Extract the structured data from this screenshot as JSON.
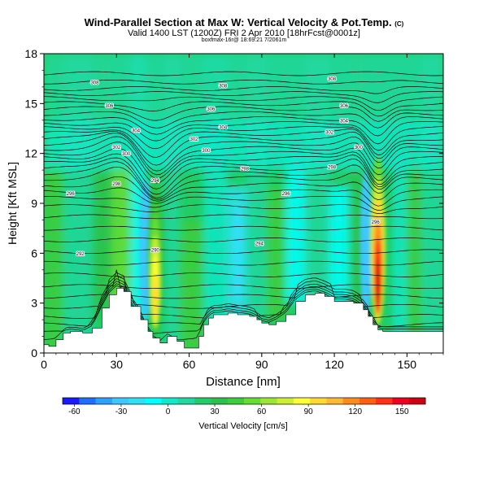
{
  "header": {
    "title": "Wind-Parallel Section at Max W: Vertical Velocity & Pot.Temp.",
    "title_mark": "(C)",
    "subtitle": "Valid 1400 LST (1200Z) FRI 2 Apr 2010 [18hrFcst@0001z]",
    "source_line": "boxfmax-16r@ 18:69:21 7/2061m"
  },
  "chart_data": {
    "type": "heatmap",
    "title": "Wind-Parallel Section at Max W: Vertical Velocity & Pot.Temp.",
    "xlabel": "Distance [nm]",
    "ylabel": "Height [Kft MSL]",
    "xlim": [
      0,
      165
    ],
    "ylim": [
      0,
      18
    ],
    "x_ticks": [
      0,
      30,
      60,
      90,
      120,
      150
    ],
    "y_ticks": [
      0,
      3,
      6,
      9,
      12,
      15,
      18
    ],
    "colorbar": {
      "label": "Vertical Velocity [cm/s]",
      "tick_values": [
        -60,
        -30,
        0,
        30,
        60,
        90,
        120,
        150
      ],
      "tick_labels": [
        "-60",
        "-30",
        "0",
        "30",
        "60",
        "90",
        "120",
        "150"
      ],
      "range": [
        -67.5,
        165
      ],
      "colors": [
        "#1a1aff",
        "#1e6fff",
        "#2ba0ff",
        "#3cc8ff",
        "#2ee0f0",
        "#00ffff",
        "#10e8c8",
        "#20d8a0",
        "#22cc66",
        "#2ac24a",
        "#3ccc3c",
        "#66dd33",
        "#99e633",
        "#ccee33",
        "#ffff33",
        "#ffd833",
        "#ffb833",
        "#ff8c1a",
        "#ff6010",
        "#ff3018",
        "#ee0020",
        "#cc0010"
      ]
    },
    "terrain": {
      "x": [
        0,
        2,
        5,
        8,
        11,
        16,
        20,
        24,
        27,
        30,
        33,
        36,
        40,
        43,
        45,
        48,
        51,
        55,
        58,
        61,
        64,
        66,
        68,
        70,
        73,
        76,
        80,
        85,
        88,
        90,
        93,
        96,
        100,
        104,
        108,
        112,
        116,
        120,
        124,
        128,
        132,
        134,
        136,
        138,
        140,
        145,
        150,
        155,
        160,
        165
      ],
      "y": [
        0.5,
        0.4,
        0.8,
        1.2,
        1.3,
        1.2,
        1.5,
        2.7,
        3.5,
        3.9,
        3.7,
        2.8,
        2.0,
        1.3,
        0.9,
        0.6,
        1.0,
        0.7,
        0.3,
        0.3,
        1.0,
        1.7,
        2.1,
        2.3,
        2.3,
        2.4,
        2.3,
        2.2,
        2.0,
        1.8,
        1.7,
        1.9,
        2.3,
        3.1,
        3.5,
        3.6,
        3.4,
        3.1,
        3.1,
        3.0,
        2.6,
        2.2,
        1.7,
        1.4,
        1.3,
        1.3,
        1.3,
        1.3,
        1.3,
        1.3
      ]
    },
    "updrafts": [
      {
        "x": 46,
        "y_bottom": 1.0,
        "y_top": 10.5,
        "peak": 95
      },
      {
        "x": 138,
        "y_bottom": 1.6,
        "y_top": 11.8,
        "peak": 165
      }
    ],
    "downdrafts": [
      {
        "x": 42,
        "y_bottom": 2.0,
        "y_top": 10.5,
        "min": -30
      },
      {
        "x": 133,
        "y_bottom": 2.0,
        "y_top": 11.0,
        "min": -30
      },
      {
        "x": 80,
        "y_bottom": 3.0,
        "y_top": 9.0,
        "min": -20
      }
    ],
    "theta_contours": {
      "count": 38,
      "base_heights": [
        0.8,
        1.2,
        1.7,
        2.2,
        2.8,
        3.4,
        4.0,
        4.7,
        5.4,
        6.1,
        6.8,
        7.5,
        8.2,
        8.8,
        9.3,
        9.7,
        10.1,
        10.5,
        10.8,
        11.1,
        11.4,
        11.7,
        12.0,
        12.3,
        12.6,
        12.9,
        13.2,
        13.5,
        13.8,
        14.1,
        14.4,
        14.7,
        15.0,
        15.3,
        15.6,
        15.9,
        16.3,
        16.8
      ]
    },
    "contour_labels": [
      {
        "x": 21,
        "y": 16.3,
        "text": "308"
      },
      {
        "x": 27,
        "y": 14.9,
        "text": "306"
      },
      {
        "x": 38,
        "y": 13.4,
        "text": "304"
      },
      {
        "x": 30,
        "y": 12.4,
        "text": "302"
      },
      {
        "x": 34,
        "y": 12.0,
        "text": "300"
      },
      {
        "x": 30,
        "y": 10.2,
        "text": "298"
      },
      {
        "x": 11,
        "y": 9.6,
        "text": "296"
      },
      {
        "x": 46,
        "y": 10.4,
        "text": "294"
      },
      {
        "x": 15,
        "y": 6.0,
        "text": "292"
      },
      {
        "x": 46,
        "y": 6.2,
        "text": "290"
      },
      {
        "x": 74,
        "y": 16.1,
        "text": "308"
      },
      {
        "x": 69,
        "y": 14.7,
        "text": "306"
      },
      {
        "x": 74,
        "y": 13.6,
        "text": "304"
      },
      {
        "x": 62,
        "y": 12.9,
        "text": "302"
      },
      {
        "x": 67,
        "y": 12.2,
        "text": "300"
      },
      {
        "x": 83,
        "y": 11.1,
        "text": "298"
      },
      {
        "x": 100,
        "y": 9.6,
        "text": "296"
      },
      {
        "x": 89,
        "y": 6.6,
        "text": "294"
      },
      {
        "x": 119,
        "y": 16.5,
        "text": "308"
      },
      {
        "x": 124,
        "y": 14.9,
        "text": "306"
      },
      {
        "x": 124,
        "y": 14.0,
        "text": "304"
      },
      {
        "x": 118,
        "y": 13.3,
        "text": "302"
      },
      {
        "x": 130,
        "y": 12.4,
        "text": "300"
      },
      {
        "x": 119,
        "y": 11.2,
        "text": "298"
      },
      {
        "x": 137,
        "y": 7.9,
        "text": "296"
      }
    ]
  }
}
